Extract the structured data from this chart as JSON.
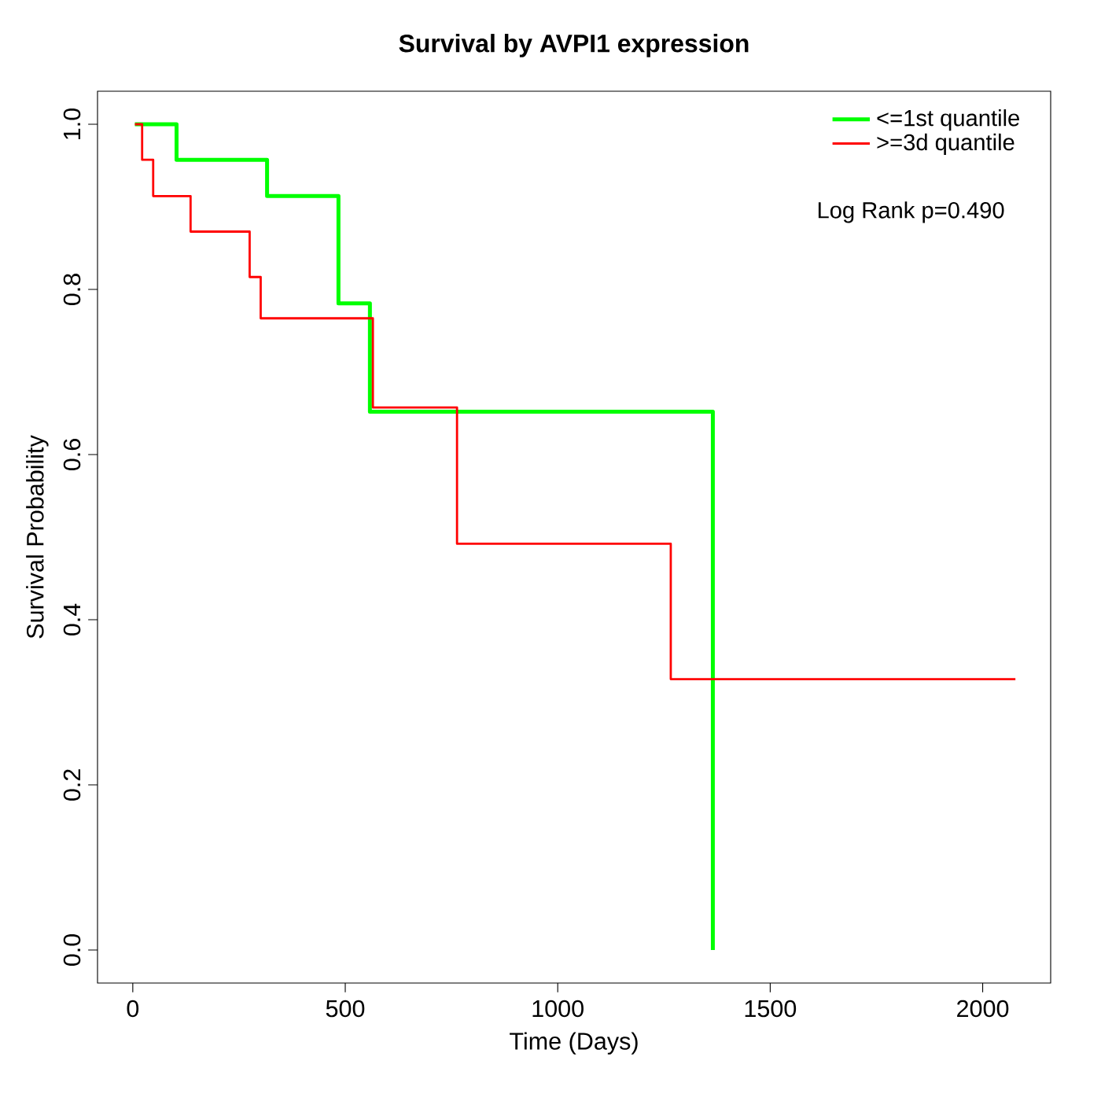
{
  "chart_data": {
    "type": "step",
    "title": "Survival by AVPI1 expression",
    "xlabel": "Time (Days)",
    "ylabel": "Survival Probability",
    "series": [
      {
        "name": "<=1st quantile",
        "color": "#00ff00",
        "x": [
          5,
          103,
          316,
          484,
          558,
          1365,
          1365
        ],
        "values": [
          1.0,
          0.957,
          0.913,
          0.783,
          0.652,
          0.652,
          0
        ]
      },
      {
        "name": ">=3d quantile",
        "color": "#ff0000",
        "x": [
          5,
          22,
          48,
          136,
          275,
          301,
          565,
          763,
          1266,
          2077
        ],
        "values": [
          1.0,
          0.957,
          0.913,
          0.87,
          0.815,
          0.765,
          0.657,
          0.492,
          0.328,
          0.328
        ]
      }
    ],
    "xlim": [
      -83,
      2160
    ],
    "ylim": [
      -0.04,
      1.04
    ],
    "xticks": [
      0,
      500,
      1000,
      1500,
      2000
    ],
    "yticks": [
      {
        "value": 0,
        "label": "0.0"
      },
      {
        "value": 0.2,
        "label": "0.2"
      },
      {
        "value": 0.4,
        "label": "0.4"
      },
      {
        "value": 0.6,
        "label": "0.6"
      },
      {
        "value": 0.8,
        "label": "0.8"
      },
      {
        "value": 1,
        "label": "1.0"
      }
    ],
    "legend": "top right",
    "grid": false,
    "annotations": [
      "Log Rank p=0.490"
    ]
  }
}
